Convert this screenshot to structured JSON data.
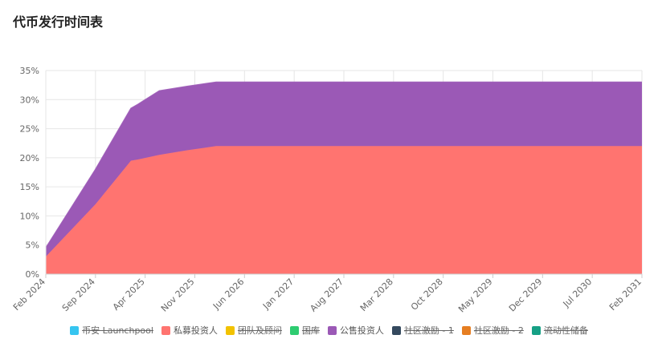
{
  "title": "代币发行时间表",
  "chart_data": {
    "type": "area",
    "stacked": true,
    "y_ticks": [
      "35%",
      "30%",
      "25%",
      "20%",
      "15%",
      "10%",
      "5%",
      "0%"
    ],
    "y_tick_values": [
      35,
      30,
      25,
      20,
      15,
      10,
      5,
      0
    ],
    "ylim": [
      0,
      35
    ],
    "x_tick_labels": [
      "Feb 2024",
      "Sep 2024",
      "Apr 2025",
      "Nov 2025",
      "Jun 2026",
      "Jan 2027",
      "Aug 2027",
      "Mar 2028",
      "Oct 2028",
      "May 2029",
      "Dec 2029",
      "Jul 2030",
      "Feb 2031"
    ],
    "grid": true,
    "legend_position": "bottom",
    "series": [
      {
        "name": "币安 Launchpool",
        "color": "#36c5f0",
        "visible": false,
        "points": []
      },
      {
        "name": "私募投资人",
        "color": "#ff7470",
        "visible": true,
        "points": [
          [
            "2024-02",
            3
          ],
          [
            "2024-09",
            12
          ],
          [
            "2025-02",
            19.5
          ],
          [
            "2025-03",
            19.7
          ],
          [
            "2025-06",
            20.5
          ],
          [
            "2025-10",
            21.3
          ],
          [
            "2026-02",
            22
          ],
          [
            "2031-02",
            22
          ]
        ]
      },
      {
        "name": "团队及顾问",
        "color": "#f2c200",
        "visible": false,
        "points": []
      },
      {
        "name": "国库",
        "color": "#2ecc71",
        "visible": false,
        "points": []
      },
      {
        "name": "公售投资人",
        "color": "#9b59b6",
        "visible": true,
        "points": [
          [
            "2024-02",
            1.5
          ],
          [
            "2024-09",
            6
          ],
          [
            "2025-02",
            9
          ],
          [
            "2025-03",
            9.5
          ],
          [
            "2025-06",
            11
          ],
          [
            "2025-10",
            11
          ],
          [
            "2026-02",
            11
          ],
          [
            "2031-02",
            11
          ]
        ]
      },
      {
        "name": "社区激励 - 1",
        "color": "#34495e",
        "visible": false,
        "points": []
      },
      {
        "name": "社区激励 - 2",
        "color": "#e67e22",
        "visible": false,
        "points": []
      },
      {
        "name": "流动性储备",
        "color": "#16a085",
        "visible": false,
        "points": []
      }
    ]
  }
}
